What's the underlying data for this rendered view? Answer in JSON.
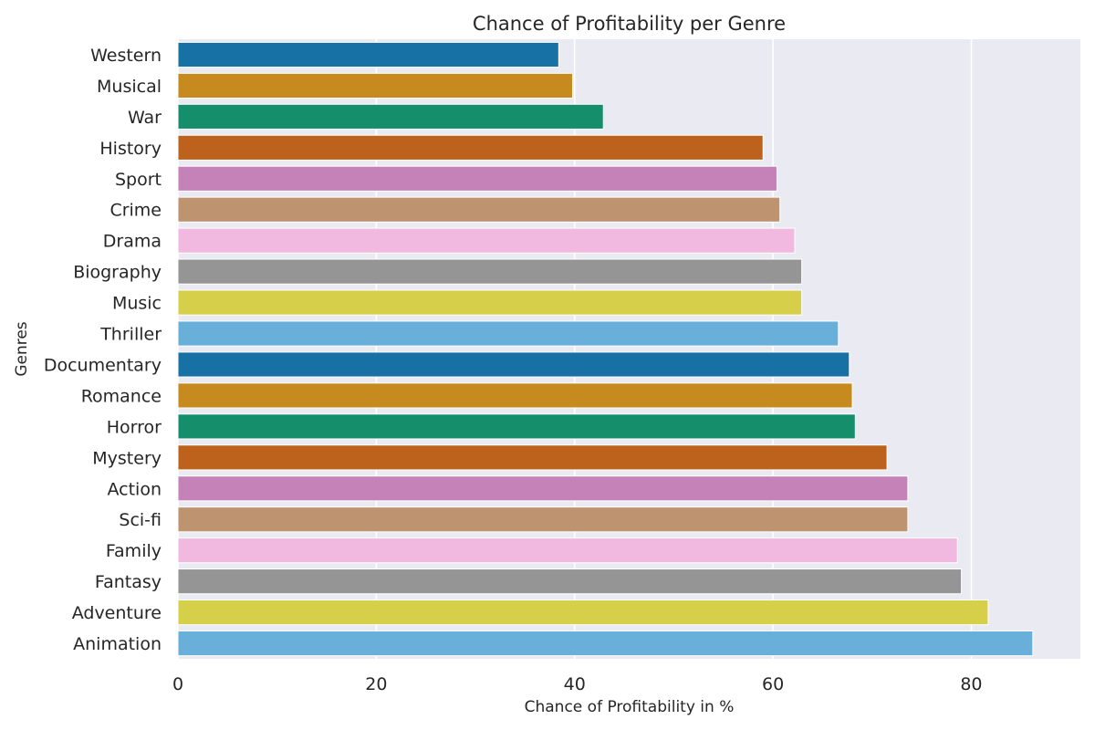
{
  "chart_data": {
    "type": "bar",
    "orientation": "horizontal",
    "title": "Chance of Profitability per Genre",
    "xlabel": "Chance of Profitability in %",
    "ylabel": "Genres",
    "xlim": [
      0,
      91
    ],
    "xticks": [
      0,
      20,
      40,
      60,
      80
    ],
    "grid": true,
    "background": "#eaeaf2",
    "grid_color": "#ffffff",
    "categories": [
      "Western",
      "Musical",
      "War",
      "History",
      "Sport",
      "Crime",
      "Drama",
      "Biography",
      "Music",
      "Thriller",
      "Documentary",
      "Romance",
      "Horror",
      "Mystery",
      "Action",
      "Sci-fi",
      "Family",
      "Fantasy",
      "Adventure",
      "Animation"
    ],
    "values": [
      38.4,
      39.8,
      42.9,
      59.0,
      60.4,
      60.7,
      62.2,
      62.9,
      62.9,
      66.6,
      67.7,
      68.0,
      68.3,
      71.5,
      73.6,
      73.6,
      78.6,
      79.0,
      81.7,
      86.2
    ],
    "colors": [
      "#1771a5",
      "#c78a1e",
      "#158f6b",
      "#bd621c",
      "#c582b9",
      "#bd9370",
      "#f1b9e0",
      "#959595",
      "#d6cf4a",
      "#68afda",
      "#1771a5",
      "#c78a1e",
      "#158f6b",
      "#bd621c",
      "#c582b9",
      "#bd9370",
      "#f1b9e0",
      "#959595",
      "#d6cf4a",
      "#68afda"
    ]
  }
}
